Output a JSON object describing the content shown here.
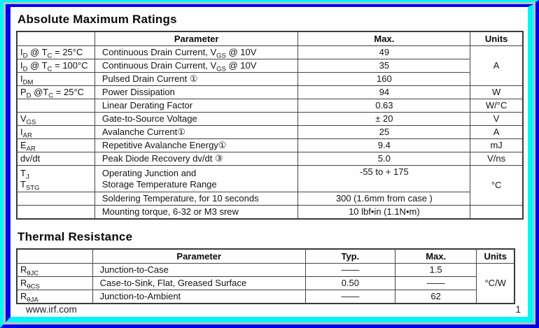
{
  "colors": {
    "frame_light": "#00f6f6",
    "frame_dark": "#0000ee",
    "frame_gap": "#c0c0c0",
    "table_border": "#454545"
  },
  "abs_max": {
    "title": "Absolute Maximum Ratings",
    "headers": {
      "parameter": "Parameter",
      "max": "Max.",
      "units": "Units"
    },
    "rows": [
      {
        "sym": [
          {
            "t": "I"
          },
          {
            "t": "D",
            "sub": true
          },
          {
            "t": " @ T"
          },
          {
            "t": "C",
            "sub": true
          },
          {
            "t": " = 25°C"
          }
        ],
        "param": [
          {
            "t": "Continuous Drain Current, V"
          },
          {
            "t": "GS",
            "sub": true
          },
          {
            "t": " @ 10V"
          }
        ],
        "max": "49",
        "units": "A"
      },
      {
        "sym": [
          {
            "t": "I"
          },
          {
            "t": "D",
            "sub": true
          },
          {
            "t": " @ T"
          },
          {
            "t": "C",
            "sub": true
          },
          {
            "t": " = 100°C"
          }
        ],
        "param": [
          {
            "t": "Continuous Drain Current, V"
          },
          {
            "t": "GS",
            "sub": true
          },
          {
            "t": " @ 10V"
          }
        ],
        "max": "35"
      },
      {
        "sym": [
          {
            "t": "I"
          },
          {
            "t": "DM",
            "sub": true
          }
        ],
        "param_text": "Pulsed Drain Current ①",
        "max": "160"
      },
      {
        "sym": [
          {
            "t": "P"
          },
          {
            "t": "D",
            "sub": true
          },
          {
            "t": " @T"
          },
          {
            "t": "C",
            "sub": true
          },
          {
            "t": " = 25°C"
          }
        ],
        "param_text": "Power Dissipation",
        "max": "94",
        "units": "W"
      },
      {
        "param_text": "Linear Derating Factor",
        "max": "0.63",
        "units": "W/°C"
      },
      {
        "sym": [
          {
            "t": "V"
          },
          {
            "t": "GS",
            "sub": true
          }
        ],
        "param_text": "Gate-to-Source Voltage",
        "max": "± 20",
        "units": "V"
      },
      {
        "sym": [
          {
            "t": "I"
          },
          {
            "t": "AR",
            "sub": true
          }
        ],
        "param_text": "Avalanche Current①",
        "max": "25",
        "units": "A"
      },
      {
        "sym": [
          {
            "t": "E"
          },
          {
            "t": "AR",
            "sub": true
          }
        ],
        "param_text": "Repetitive Avalanche Energy①",
        "max": "9.4",
        "units": "mJ"
      },
      {
        "sym_text": "dv/dt",
        "param_text": "Peak Diode Recovery dv/dt ③",
        "max": "5.0",
        "units": "V/ns"
      },
      {
        "sym": [
          {
            "t": "T"
          },
          {
            "t": "J",
            "sub": true
          }
        ],
        "sym2": [
          {
            "t": "T"
          },
          {
            "t": "STG",
            "sub": true
          }
        ],
        "param_line1": "Operating Junction and",
        "param_line2": "Storage Temperature Range",
        "max": "-55  to + 175",
        "units": "°C"
      },
      {
        "param_text": "Soldering Temperature, for 10 seconds",
        "max": "300 (1.6mm from case )"
      },
      {
        "param_text": "Mounting torque, 6-32 or M3 srew",
        "max": "10 lbf•in (1.1N•m)",
        "units": ""
      }
    ]
  },
  "thermal": {
    "title": "Thermal Resistance",
    "headers": {
      "parameter": "Parameter",
      "typ": "Typ.",
      "max": "Max.",
      "units": "Units"
    },
    "rows": [
      {
        "sym": [
          {
            "t": "R"
          },
          {
            "t": "θJC",
            "sub": true
          }
        ],
        "param_text": "Junction-to-Case",
        "typ": "——",
        "max": "1.5",
        "units": "°C/W"
      },
      {
        "sym": [
          {
            "t": "R"
          },
          {
            "t": "θCS",
            "sub": true
          }
        ],
        "param_text": "Case-to-Sink, Flat, Greased Surface",
        "typ": "0.50",
        "max": "——"
      },
      {
        "sym": [
          {
            "t": "R"
          },
          {
            "t": "θJA",
            "sub": true
          }
        ],
        "param_text": "Junction-to-Ambient",
        "typ": "——",
        "max": "62"
      }
    ]
  },
  "footer": {
    "site": "www.irf.com",
    "page_number": "1"
  }
}
